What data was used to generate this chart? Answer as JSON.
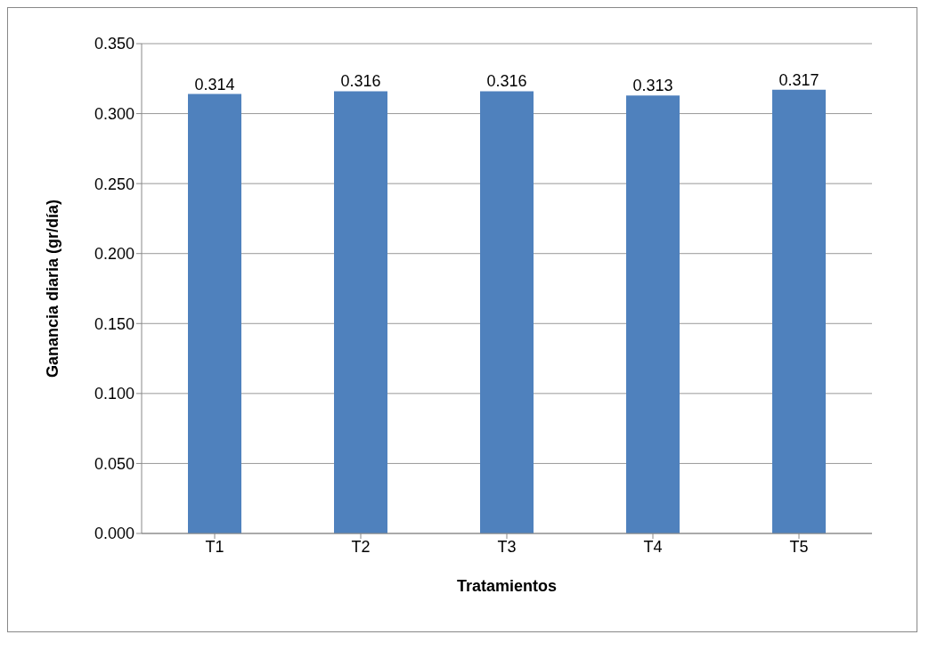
{
  "chart_data": {
    "type": "bar",
    "xlabel": "Tratamientos",
    "ylabel": "Ganancia diaria (gr/día)",
    "categories": [
      "T1",
      "T2",
      "T3",
      "T4",
      "T5"
    ],
    "values": [
      0.314,
      0.316,
      0.316,
      0.313,
      0.317
    ],
    "color": "#4f81bd",
    "ylim": [
      0,
      0.35
    ],
    "yticks": [
      {
        "value": 0,
        "label": "0.000"
      },
      {
        "value": 0.05,
        "label": "0.050"
      },
      {
        "value": 0.1,
        "label": "0.100"
      },
      {
        "value": 0.15,
        "label": "0.150"
      },
      {
        "value": 0.2,
        "label": "0.200"
      },
      {
        "value": 0.25,
        "label": "0.250"
      },
      {
        "value": 0.3,
        "label": "0.300"
      },
      {
        "value": 0.35,
        "label": "0.350"
      }
    ],
    "grid": "y",
    "data_labels": true,
    "legend": false
  }
}
